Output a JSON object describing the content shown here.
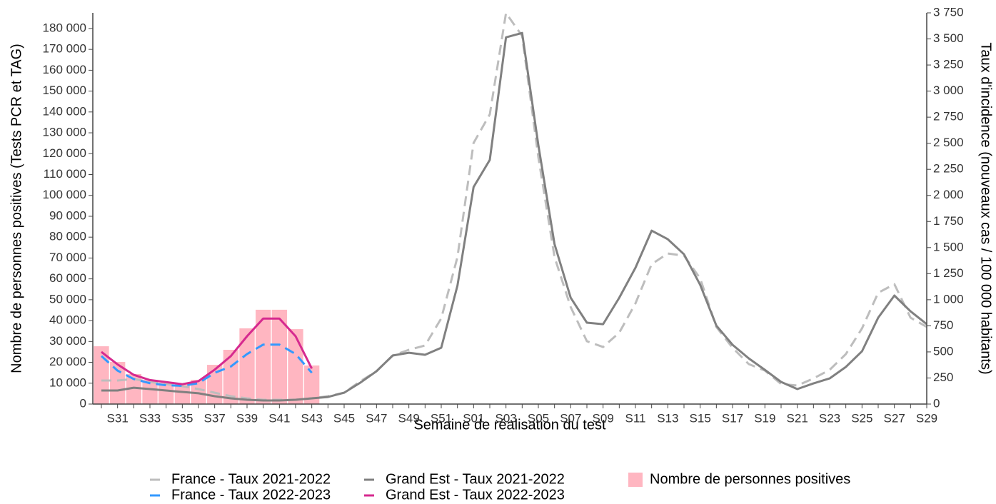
{
  "chart_data": {
    "type": "bar",
    "xlabel": "Semaine de réalisation du test",
    "ylabel": "Nombre de personnes positives (Tests PCR et TAG)",
    "y2label": "Taux d'incidence (nouveaux cas / 100 000 habitants)",
    "categories": [
      null,
      "S31",
      null,
      "S33",
      null,
      "S35",
      null,
      "S37",
      null,
      "S39",
      null,
      "S41",
      null,
      "S43",
      null,
      "S45",
      null,
      "S47",
      null,
      "S49",
      null,
      "S51",
      null,
      "S01",
      null,
      "S03",
      null,
      "S05",
      null,
      "S07",
      null,
      "S09",
      null,
      "S11",
      null,
      "S13",
      null,
      "S15",
      null,
      "S17",
      null,
      "S19",
      null,
      "S21",
      null,
      "S23",
      null,
      "S25",
      null,
      "S27",
      null,
      "S29"
    ],
    "ylim": [
      0,
      187500
    ],
    "yticks": [
      0,
      {
        "value": 10000,
        "label": "10 000"
      },
      {
        "value": 20000,
        "label": "20 000"
      },
      {
        "value": 30000,
        "label": "30 000"
      },
      {
        "value": 40000,
        "label": "40 000"
      },
      {
        "value": 50000,
        "label": "50 000"
      },
      {
        "value": 60000,
        "label": "60 000"
      },
      {
        "value": 70000,
        "label": "70 000"
      },
      {
        "value": 80000,
        "label": "80 000"
      },
      {
        "value": 90000,
        "label": "90 000"
      },
      {
        "value": 100000,
        "label": "100 000"
      },
      {
        "value": 110000,
        "label": "110 000"
      },
      {
        "value": 120000,
        "label": "120 000"
      },
      {
        "value": 130000,
        "label": "130 000"
      },
      {
        "value": 140000,
        "label": "140 000"
      },
      {
        "value": 150000,
        "label": "150 000"
      },
      {
        "value": 160000,
        "label": "160 000"
      },
      {
        "value": 170000,
        "label": "170 000"
      },
      {
        "value": 180000,
        "label": "180 000"
      }
    ],
    "y2lim": [
      0,
      3750
    ],
    "y2ticks": [
      0,
      250,
      500,
      750,
      {
        "value": 1000,
        "label": "1 000"
      },
      {
        "value": 1250,
        "label": "1 250"
      },
      {
        "value": 1500,
        "label": "1 500"
      },
      {
        "value": 1750,
        "label": "1 750"
      },
      {
        "value": 2000,
        "label": "2 000"
      },
      {
        "value": 2250,
        "label": "2 250"
      },
      {
        "value": 2500,
        "label": "2 500"
      },
      {
        "value": 2750,
        "label": "2 750"
      },
      {
        "value": 3000,
        "label": "3 000"
      },
      {
        "value": 3250,
        "label": "3 250"
      },
      {
        "value": 3500,
        "label": "3 500"
      },
      {
        "value": 3750,
        "label": "3 750"
      }
    ],
    "series": [
      {
        "name": "Nombre de personnes positives",
        "type": "bar",
        "color": "#ffb6c1",
        "values": [
          27700,
          20200,
          14400,
          11600,
          10300,
          9600,
          11600,
          18800,
          26000,
          36300,
          45200,
          45200,
          35900,
          18500,
          null,
          null,
          null,
          null,
          null,
          null,
          null,
          null,
          null,
          null,
          null,
          null,
          null,
          null,
          null,
          null,
          null,
          null,
          null,
          null,
          null,
          null,
          null,
          null,
          null,
          null,
          null,
          null,
          null,
          null,
          null,
          null,
          null,
          null,
          null,
          null,
          null,
          null
        ]
      },
      {
        "name": "France - Taux 2021-2022",
        "type": "line",
        "axis": "y2",
        "dashed": true,
        "color": "#bdbdbd",
        "values": [
          226,
          226,
          240,
          212,
          192,
          171,
          144,
          109,
          75,
          55,
          41,
          41,
          41,
          55,
          75,
          109,
          219,
          315,
          465,
          520,
          561,
          821,
          1409,
          2503,
          2777,
          3748,
          3529,
          2367,
          1409,
          930,
          602,
          547,
          684,
          965,
          1341,
          1443,
          1423,
          1204,
          739,
          540,
          383,
          321,
          192,
          178,
          246,
          328,
          479,
          725,
          1067,
          1149,
          828,
          740
        ]
      },
      {
        "name": "Grand Est - Taux 2021-2022",
        "type": "line",
        "axis": "y2",
        "dashed": false,
        "color": "#808080",
        "values": [
          130,
          130,
          157,
          144,
          130,
          116,
          103,
          75,
          55,
          41,
          34,
          34,
          41,
          55,
          68,
          109,
          205,
          315,
          465,
          492,
          472,
          540,
          1135,
          2080,
          2340,
          3515,
          3557,
          2483,
          1532,
          1019,
          780,
          766,
          1019,
          1306,
          1662,
          1580,
          1436,
          1142,
          752,
          568,
          438,
          328,
          212,
          144,
          198,
          246,
          356,
          506,
          828,
          1040,
          889,
          766
        ]
      },
      {
        "name": "France - Taux 2022-2023",
        "type": "line",
        "axis": "y2",
        "dashed": true,
        "color": "#3399ff",
        "values": [
          460,
          320,
          240,
          200,
          180,
          175,
          200,
          300,
          360,
          480,
          570,
          570,
          480,
          300,
          null,
          null,
          null,
          null,
          null,
          null,
          null,
          null,
          null,
          null,
          null,
          null,
          null,
          null,
          null,
          null,
          null,
          null,
          null,
          null,
          null,
          null,
          null,
          null,
          null,
          null,
          null,
          null,
          null,
          null,
          null,
          null,
          null,
          null,
          null,
          null,
          null,
          null
        ]
      },
      {
        "name": "Grand Est - Taux 2022-2023",
        "type": "line",
        "axis": "y2",
        "dashed": false,
        "color": "#d62a8f",
        "values": [
          500,
          380,
          280,
          230,
          210,
          190,
          220,
          330,
          460,
          650,
          820,
          820,
          650,
          340,
          null,
          null,
          null,
          null,
          null,
          null,
          null,
          null,
          null,
          null,
          null,
          null,
          null,
          null,
          null,
          null,
          null,
          null,
          null,
          null,
          null,
          null,
          null,
          null,
          null,
          null,
          null,
          null,
          null,
          null,
          null,
          null,
          null,
          null,
          null,
          null,
          null,
          null
        ]
      }
    ]
  }
}
